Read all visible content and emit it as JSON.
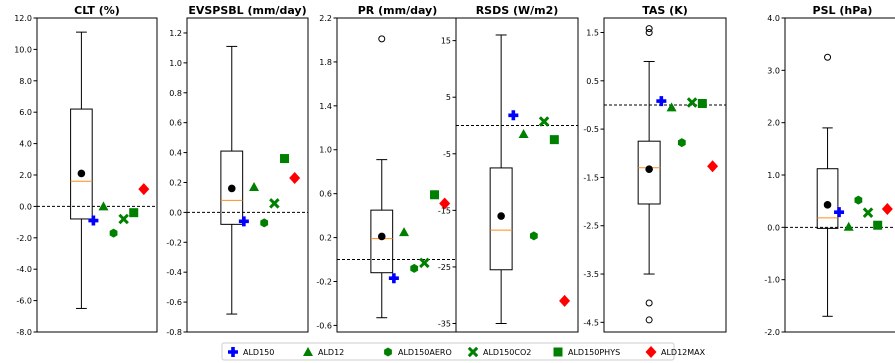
{
  "legend": {
    "items": [
      {
        "name": "ALD150",
        "marker": "plus",
        "color": "#0000ff"
      },
      {
        "name": "ALD12",
        "marker": "triangle",
        "color": "#008000"
      },
      {
        "name": "ALD150AERO",
        "marker": "hexagon",
        "color": "#008000"
      },
      {
        "name": "ALD150CO2",
        "marker": "x",
        "color": "#008000"
      },
      {
        "name": "ALD150PHYS",
        "marker": "square",
        "color": "#008000"
      },
      {
        "name": "ALD12MAX",
        "marker": "diamond",
        "color": "#ff0000"
      }
    ]
  },
  "colors": {
    "median": "#ff8c1a",
    "mean": "#000000",
    "box": "#000000"
  },
  "chart_data": [
    {
      "type": "box",
      "title": "CLT (%)",
      "ylim": [
        -8,
        12
      ],
      "yticks": [
        -8,
        -6,
        -4,
        -2,
        0,
        2,
        4,
        6,
        8,
        10,
        12
      ],
      "ytick_labels": [
        "-8.0",
        "-6.0",
        "-4.0",
        "-2.0",
        "0.0",
        "2.0",
        "4.0",
        "6.0",
        "8.0",
        "10.0",
        "12.0"
      ],
      "reference_line": 0,
      "box": {
        "whisker_low": -6.5,
        "q1": -0.8,
        "median": 1.6,
        "q3": 6.2,
        "whisker_high": 11.1,
        "mean": 2.1,
        "outliers": []
      },
      "members": [
        {
          "name": "ALD150",
          "value": -0.9
        },
        {
          "name": "ALD12",
          "value": 0.0
        },
        {
          "name": "ALD150AERO",
          "value": -1.7
        },
        {
          "name": "ALD150CO2",
          "value": -0.8
        },
        {
          "name": "ALD150PHYS",
          "value": -0.4
        },
        {
          "name": "ALD12MAX",
          "value": 1.1
        }
      ]
    },
    {
      "type": "box",
      "title": "EVSPSBL (mm/day)",
      "ylim": [
        -0.8,
        1.3
      ],
      "yticks": [
        -0.8,
        -0.6,
        -0.4,
        -0.2,
        0,
        0.2,
        0.4,
        0.6,
        0.8,
        1.0,
        1.2
      ],
      "ytick_labels": [
        "-0.8",
        "-0.6",
        "-0.4",
        "-0.2",
        "0.0",
        "0.2",
        "0.4",
        "0.6",
        "0.8",
        "1.0",
        "1.2"
      ],
      "reference_line": 0,
      "box": {
        "whisker_low": -0.68,
        "q1": -0.08,
        "median": 0.08,
        "q3": 0.41,
        "whisker_high": 1.11,
        "mean": 0.16,
        "outliers": []
      },
      "members": [
        {
          "name": "ALD150",
          "value": -0.06
        },
        {
          "name": "ALD12",
          "value": 0.17
        },
        {
          "name": "ALD150AERO",
          "value": -0.07
        },
        {
          "name": "ALD150CO2",
          "value": 0.06
        },
        {
          "name": "ALD150PHYS",
          "value": 0.36
        },
        {
          "name": "ALD12MAX",
          "value": 0.23
        }
      ]
    },
    {
      "type": "box",
      "title": "PR (mm/day)",
      "ylim": [
        -0.66,
        2.2
      ],
      "yticks": [
        -0.6,
        -0.2,
        0.2,
        0.6,
        1.0,
        1.4,
        1.8,
        2.2
      ],
      "ytick_labels": [
        "-0.6",
        "-0.2",
        "0.2",
        "0.6",
        "1.0",
        "1.4",
        "1.8",
        "2.2"
      ],
      "reference_line": 0,
      "box": {
        "whisker_low": -0.53,
        "q1": -0.12,
        "median": 0.19,
        "q3": 0.45,
        "whisker_high": 0.91,
        "mean": 0.21,
        "outliers": [
          2.01
        ]
      },
      "members": [
        {
          "name": "ALD150",
          "value": -0.17
        },
        {
          "name": "ALD12",
          "value": 0.25
        },
        {
          "name": "ALD150AERO",
          "value": -0.08
        },
        {
          "name": "ALD150CO2",
          "value": -0.03
        },
        {
          "name": "ALD150PHYS",
          "value": 0.59
        },
        {
          "name": "ALD12MAX",
          "value": 0.51
        }
      ]
    },
    {
      "type": "box",
      "title": "RSDS (W/m2)",
      "ylim": [
        -36.5,
        19
      ],
      "yticks": [
        -35,
        -25,
        -15,
        -5,
        5,
        15
      ],
      "ytick_labels": [
        "-35",
        "-25",
        "-15",
        "-5",
        "5",
        "15"
      ],
      "reference_line": 0,
      "box": {
        "whisker_low": -35.0,
        "q1": -25.5,
        "median": -18.5,
        "q3": -7.5,
        "whisker_high": 16.0,
        "mean": -16.0,
        "outliers": []
      },
      "members": [
        {
          "name": "ALD150",
          "value": 1.8
        },
        {
          "name": "ALD12",
          "value": -1.5
        },
        {
          "name": "ALD150AERO",
          "value": -19.5
        },
        {
          "name": "ALD150CO2",
          "value": 0.7
        },
        {
          "name": "ALD150PHYS",
          "value": -2.5
        },
        {
          "name": "ALD12MAX",
          "value": -31.0
        }
      ]
    },
    {
      "type": "box",
      "title": "TAS (K)",
      "ylim": [
        -4.7,
        1.8
      ],
      "yticks": [
        -4.5,
        -3.5,
        -2.5,
        -1.5,
        -0.5,
        0.5,
        1.5
      ],
      "ytick_labels": [
        "-4.5",
        "-3.5",
        "-2.5",
        "-1.5",
        "-0.5",
        "0.5",
        "1.5"
      ],
      "reference_line": 0,
      "box": {
        "whisker_low": -3.5,
        "q1": -2.05,
        "median": -1.3,
        "q3": -0.75,
        "whisker_high": 0.9,
        "mean": -1.33,
        "outliers": [
          1.58,
          1.5,
          -4.1,
          -4.45
        ]
      },
      "members": [
        {
          "name": "ALD150",
          "value": 0.08
        },
        {
          "name": "ALD12",
          "value": -0.05
        },
        {
          "name": "ALD150AERO",
          "value": -0.78
        },
        {
          "name": "ALD150CO2",
          "value": 0.05
        },
        {
          "name": "ALD150PHYS",
          "value": 0.03
        },
        {
          "name": "ALD12MAX",
          "value": -1.27
        }
      ]
    },
    {
      "type": "box",
      "title": "PSL (hPa)",
      "ylim": [
        -2.0,
        4.0
      ],
      "yticks": [
        -2,
        -1,
        0,
        1,
        2,
        3,
        4
      ],
      "ytick_labels": [
        "-2.0",
        "-1.0",
        "0.0",
        "1.0",
        "2.0",
        "3.0",
        "4.0"
      ],
      "reference_line": 0,
      "box": {
        "whisker_low": -1.7,
        "q1": -0.02,
        "median": 0.18,
        "q3": 1.12,
        "whisker_high": 1.9,
        "mean": 0.43,
        "outliers": [
          3.25
        ]
      },
      "members": [
        {
          "name": "ALD150",
          "value": 0.29
        },
        {
          "name": "ALD12",
          "value": 0.01
        },
        {
          "name": "ALD150AERO",
          "value": 0.52
        },
        {
          "name": "ALD150CO2",
          "value": 0.28
        },
        {
          "name": "ALD150PHYS",
          "value": 0.04
        },
        {
          "name": "ALD12MAX",
          "value": 0.35
        }
      ]
    }
  ]
}
